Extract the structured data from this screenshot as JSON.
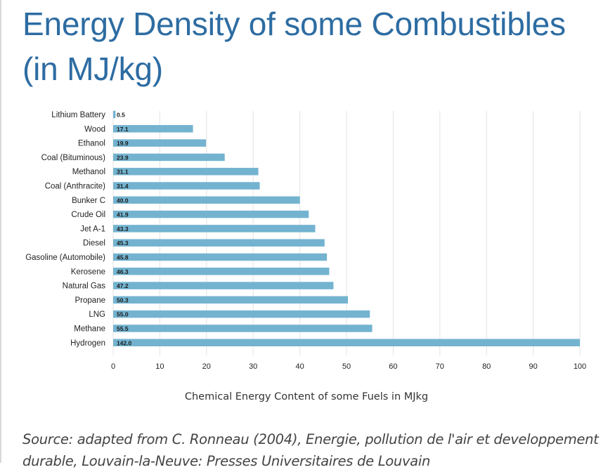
{
  "title": {
    "line1": "Energy Density of some Combustibles",
    "line2": "(in MJ/kg)"
  },
  "colors": {
    "title": "#2d6ca2",
    "bar": "#73b3d0",
    "grid": "#e3e3e3",
    "text": "#222222"
  },
  "chart_data": {
    "type": "bar",
    "orientation": "horizontal",
    "categories": [
      "Lithium Battery",
      "Wood",
      "Ethanol",
      "Coal (Bituminous)",
      "Methanol",
      "Coal (Anthracite)",
      "Bunker C",
      "Crude Oil",
      "Jet A-1",
      "Diesel",
      "Gasoline (Automobile)",
      "Kerosene",
      "Natural Gas",
      "Propane",
      "LNG",
      "Methane",
      "Hydrogen"
    ],
    "values": [
      0.5,
      17.1,
      19.9,
      23.9,
      31.1,
      31.4,
      40.0,
      41.9,
      43.3,
      45.3,
      45.8,
      46.3,
      47.2,
      50.3,
      55.0,
      55.5,
      142.0
    ],
    "data_labels": [
      "0.5",
      "17.1",
      "19.9",
      "23.9",
      "31.1",
      "31.4",
      "40.0",
      "41.9",
      "43.3",
      "45.3",
      "45.8",
      "46.3",
      "47.2",
      "50.3",
      "55.0",
      "55.5",
      "142.0"
    ],
    "xlabel": "Chemical Energy Content of some Fuels in MJkg",
    "ylabel": "",
    "xlim": [
      0,
      100
    ],
    "xticks": [
      0,
      10,
      20,
      30,
      40,
      50,
      60,
      70,
      80,
      90,
      100
    ],
    "grid": "vertical",
    "legend": "none"
  },
  "source": {
    "text": "Source: adapted from C. Ronneau (2004), Energie, pollution de l'air et developpement durable, Louvain-la-Neuve: Presses Universitaires de Louvain"
  }
}
